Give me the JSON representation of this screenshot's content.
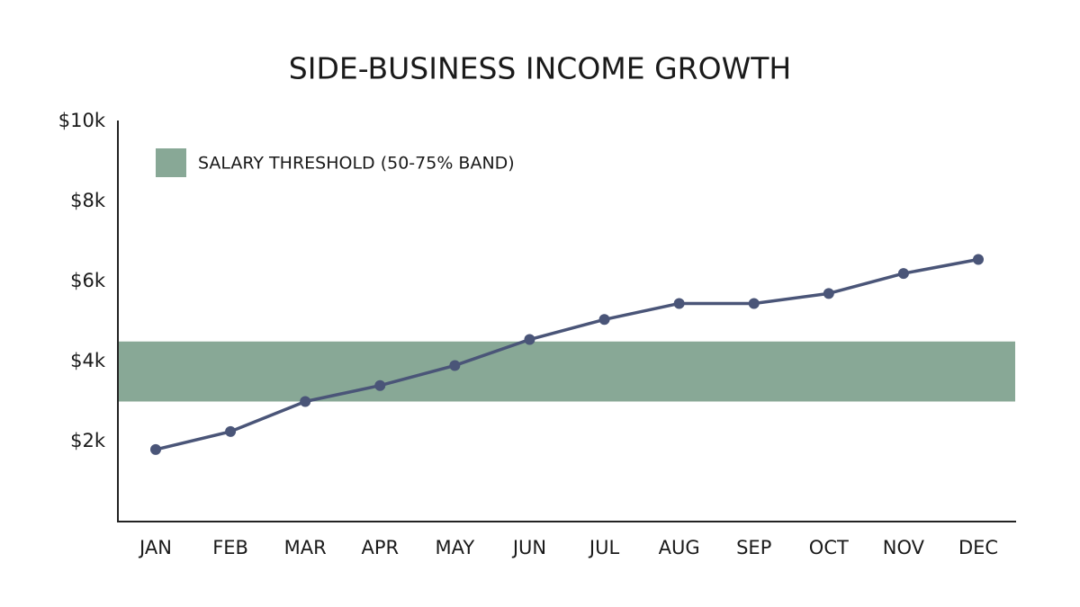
{
  "chart_data": {
    "type": "line",
    "title": "SIDE-BUSINESS INCOME GROWTH",
    "categories": [
      "JAN",
      "FEB",
      "MAR",
      "APR",
      "MAY",
      "JUN",
      "JUL",
      "AUG",
      "SEP",
      "OCT",
      "NOV",
      "DEC"
    ],
    "series": [
      {
        "color": "#4a5578",
        "values": [
          1800,
          2250,
          3000,
          3400,
          3900,
          4550,
          5050,
          5450,
          5450,
          5700,
          6200,
          6550
        ]
      }
    ],
    "band": {
      "name": "SALARY THRESHOLD (50-75% BAND)",
      "color": "#88a896",
      "range": [
        3000,
        4500
      ]
    },
    "ylim": [
      0,
      10000
    ],
    "yticks": [
      {
        "value": 2000,
        "label": "$2k"
      },
      {
        "value": 4000,
        "label": "$4k"
      },
      {
        "value": 6000,
        "label": "$6k"
      },
      {
        "value": 8000,
        "label": "$8k"
      },
      {
        "value": 10000,
        "label": "$10k"
      }
    ],
    "grid": false
  }
}
